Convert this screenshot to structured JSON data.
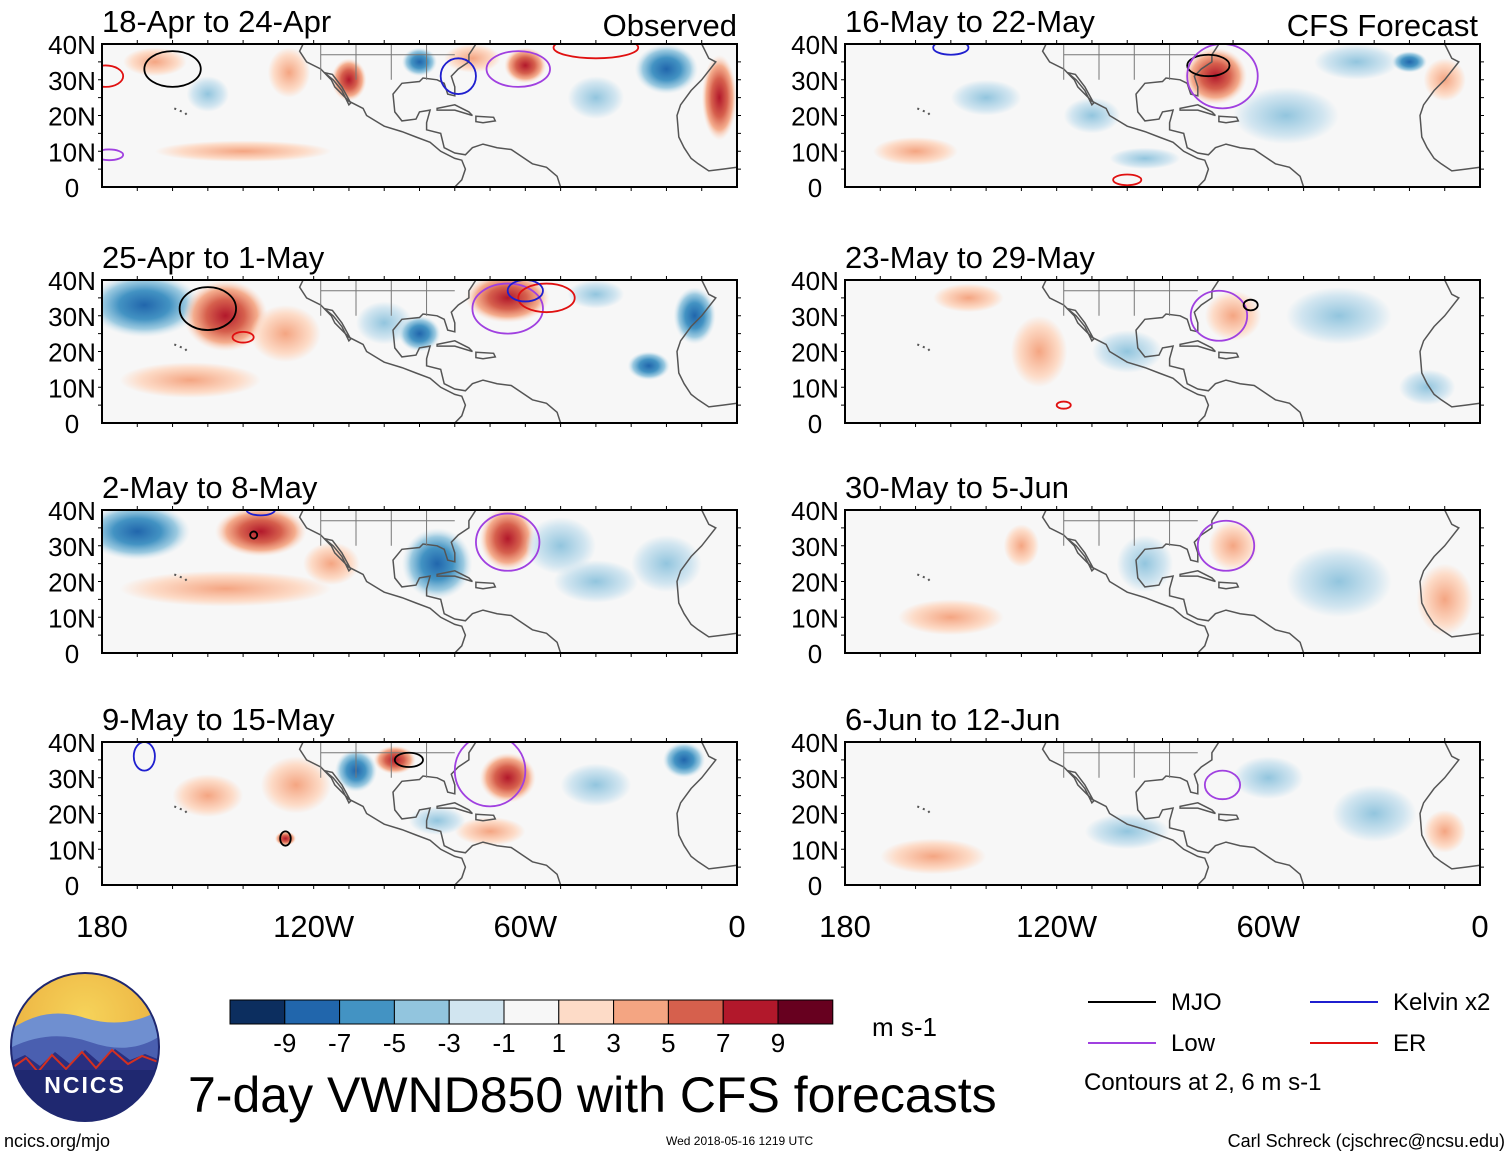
{
  "figure": {
    "title": "7-day VWND850 with CFS forecasts",
    "timestamp": "Wed 2018-05-16 1219 UTC",
    "url": "ncics.org/mjo",
    "credit": "Carl Schreck (cjschrec@ncsu.edu)",
    "logo_text": "NCICS"
  },
  "columns": {
    "observed_label": "Observed",
    "forecast_label": "CFS Forecast"
  },
  "panels": [
    {
      "label": "18-Apr to 24-Apr"
    },
    {
      "label": "25-Apr to 1-May"
    },
    {
      "label": "2-May to 8-May"
    },
    {
      "label": "9-May to 15-May"
    },
    {
      "label": "16-May to 22-May"
    },
    {
      "label": "23-May to 29-May"
    },
    {
      "label": "30-May to 5-Jun"
    },
    {
      "label": "6-Jun to 12-Jun"
    }
  ],
  "lat_labels": [
    "40N",
    "30N",
    "20N",
    "10N",
    "0"
  ],
  "lon_labels": [
    "180",
    "120W",
    "60W",
    "0"
  ],
  "colorbar": {
    "unit": "m s-1",
    "colors": [
      "#0c2e5f",
      "#2166ac",
      "#4393c3",
      "#92c5de",
      "#d1e5f0",
      "#f7f7f7",
      "#fddbc7",
      "#f4a582",
      "#d6604d",
      "#b2182b",
      "#67001f"
    ],
    "tick_labels": [
      "-9",
      "-7",
      "-5",
      "-3",
      "-1",
      "1",
      "3",
      "5",
      "7",
      "9"
    ]
  },
  "legend": {
    "items": [
      {
        "label": "MJO",
        "color": "#000000"
      },
      {
        "label": "Kelvin x2",
        "color": "#1f1fcf"
      },
      {
        "label": "Low",
        "color": "#a040e0"
      },
      {
        "label": "ER",
        "color": "#e01010"
      }
    ],
    "note": "Contours at 2, 6 m s-1"
  }
}
